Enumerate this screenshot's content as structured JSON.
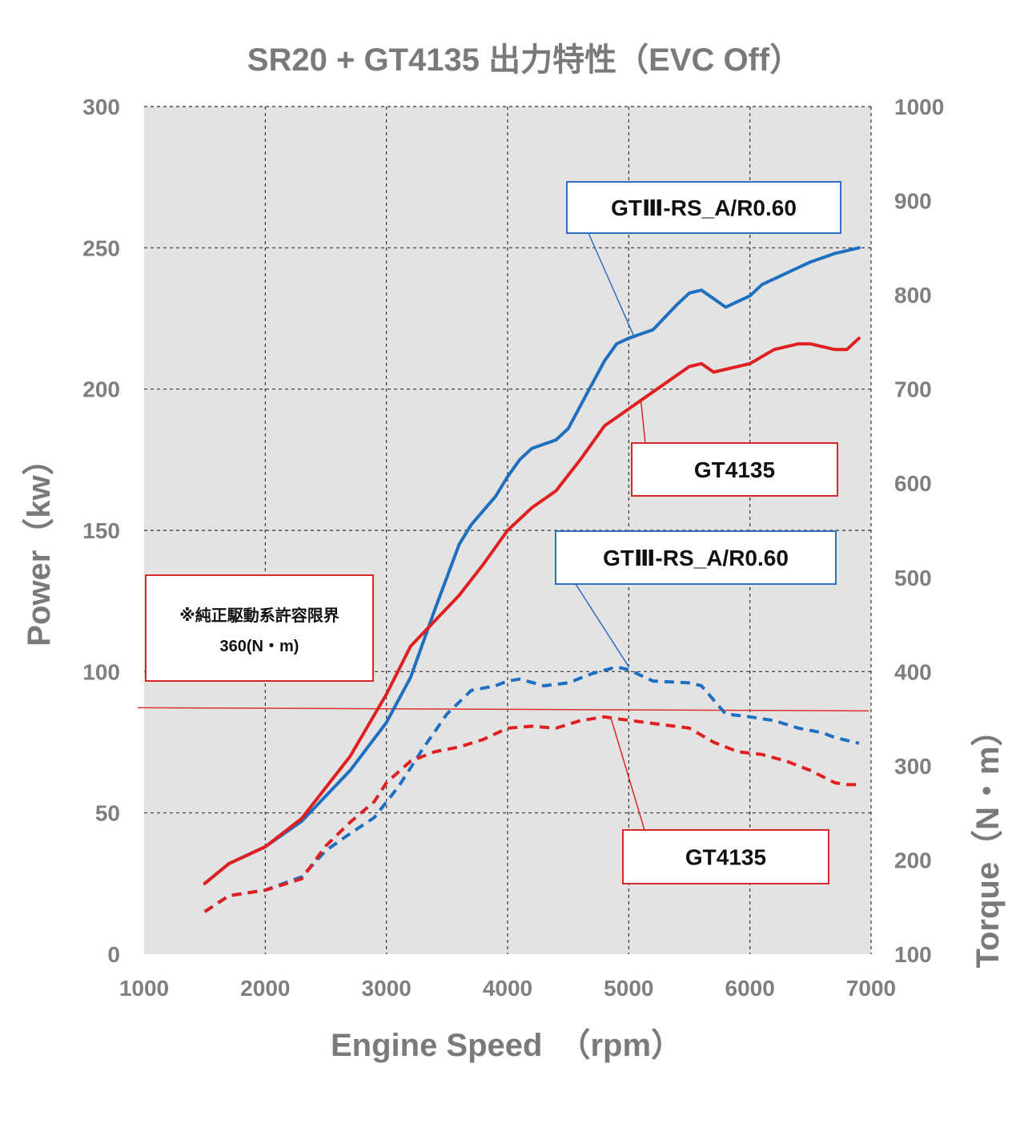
{
  "chart_data": {
    "type": "line",
    "title": "SR20 + GT4135  出力特性（EVC Off）",
    "xlabel": "Engine Speed　（rpm）",
    "ylabel_left": "Power（kw）",
    "ylabel_right": "Torque（N・m）",
    "xlim": [
      1000,
      7000
    ],
    "ylim_left": [
      0,
      300
    ],
    "ylim_right": [
      100,
      1000
    ],
    "x_ticks": [
      "1000",
      "2000",
      "3000",
      "4000",
      "5000",
      "6000",
      "7000"
    ],
    "y_left_ticks": [
      "0",
      "50",
      "100",
      "150",
      "200",
      "250",
      "300"
    ],
    "y_right_ticks": [
      "100",
      "200",
      "300",
      "400",
      "500",
      "600",
      "700",
      "800",
      "900",
      "1000"
    ],
    "grid": true,
    "series": [
      {
        "name": "GTⅢ-RS_A/R0.60",
        "quantity": "power",
        "axis": "left",
        "style": "solid",
        "color": "#1f6fc0",
        "points": [
          [
            1500,
            25
          ],
          [
            1700,
            32
          ],
          [
            2000,
            38
          ],
          [
            2300,
            47
          ],
          [
            2700,
            65
          ],
          [
            3000,
            82
          ],
          [
            3200,
            98
          ],
          [
            3400,
            122
          ],
          [
            3600,
            145
          ],
          [
            3700,
            152
          ],
          [
            3900,
            162
          ],
          [
            4000,
            169
          ],
          [
            4100,
            175
          ],
          [
            4200,
            179
          ],
          [
            4400,
            182
          ],
          [
            4500,
            186
          ],
          [
            4700,
            202
          ],
          [
            4800,
            210
          ],
          [
            4900,
            216
          ],
          [
            5000,
            218
          ],
          [
            5200,
            221
          ],
          [
            5400,
            230
          ],
          [
            5500,
            234
          ],
          [
            5600,
            235
          ],
          [
            5800,
            229
          ],
          [
            6000,
            233
          ],
          [
            6100,
            237
          ],
          [
            6300,
            241
          ],
          [
            6400,
            243
          ],
          [
            6500,
            245
          ],
          [
            6700,
            248
          ],
          [
            6900,
            250
          ]
        ]
      },
      {
        "name": "GT4135",
        "quantity": "power",
        "axis": "left",
        "style": "solid",
        "color": "#e02020",
        "points": [
          [
            1500,
            25
          ],
          [
            1700,
            32
          ],
          [
            2000,
            38
          ],
          [
            2300,
            48
          ],
          [
            2700,
            70
          ],
          [
            3000,
            92
          ],
          [
            3200,
            109
          ],
          [
            3400,
            118
          ],
          [
            3600,
            127
          ],
          [
            3800,
            138
          ],
          [
            4000,
            150
          ],
          [
            4200,
            158
          ],
          [
            4400,
            164
          ],
          [
            4600,
            175
          ],
          [
            4800,
            187
          ],
          [
            5000,
            193
          ],
          [
            5200,
            199
          ],
          [
            5400,
            205
          ],
          [
            5500,
            208
          ],
          [
            5600,
            209
          ],
          [
            5700,
            206
          ],
          [
            6000,
            209
          ],
          [
            6200,
            214
          ],
          [
            6400,
            216
          ],
          [
            6500,
            216
          ],
          [
            6700,
            214
          ],
          [
            6800,
            214
          ],
          [
            6900,
            218
          ]
        ]
      },
      {
        "name": "GTⅢ-RS_A/R0.60",
        "quantity": "torque",
        "axis": "right",
        "style": "dashed",
        "color": "#1f6fc0",
        "points": [
          [
            1500,
            145
          ],
          [
            1700,
            162
          ],
          [
            2000,
            168
          ],
          [
            2300,
            182
          ],
          [
            2500,
            210
          ],
          [
            2700,
            228
          ],
          [
            2900,
            245
          ],
          [
            3100,
            278
          ],
          [
            3300,
            318
          ],
          [
            3500,
            355
          ],
          [
            3700,
            380
          ],
          [
            3900,
            385
          ],
          [
            4000,
            390
          ],
          [
            4100,
            392
          ],
          [
            4300,
            385
          ],
          [
            4500,
            388
          ],
          [
            4700,
            398
          ],
          [
            4900,
            405
          ],
          [
            5000,
            402
          ],
          [
            5200,
            390
          ],
          [
            5500,
            388
          ],
          [
            5600,
            385
          ],
          [
            5800,
            355
          ],
          [
            6000,
            352
          ],
          [
            6200,
            348
          ],
          [
            6400,
            340
          ],
          [
            6600,
            335
          ],
          [
            6700,
            330
          ],
          [
            6900,
            324
          ]
        ]
      },
      {
        "name": "GT4135",
        "quantity": "torque",
        "axis": "right",
        "style": "dashed",
        "color": "#e02020",
        "points": [
          [
            1500,
            145
          ],
          [
            1700,
            162
          ],
          [
            2000,
            168
          ],
          [
            2300,
            180
          ],
          [
            2500,
            215
          ],
          [
            2700,
            240
          ],
          [
            2900,
            262
          ],
          [
            3000,
            282
          ],
          [
            3200,
            305
          ],
          [
            3400,
            315
          ],
          [
            3600,
            320
          ],
          [
            3800,
            328
          ],
          [
            4000,
            340
          ],
          [
            4200,
            342
          ],
          [
            4400,
            340
          ],
          [
            4600,
            348
          ],
          [
            4800,
            352
          ],
          [
            4900,
            350
          ],
          [
            5200,
            345
          ],
          [
            5500,
            340
          ],
          [
            5700,
            325
          ],
          [
            5900,
            315
          ],
          [
            6100,
            312
          ],
          [
            6300,
            305
          ],
          [
            6500,
            295
          ],
          [
            6700,
            282
          ],
          [
            6800,
            280
          ],
          [
            6900,
            280
          ]
        ]
      }
    ],
    "limit_line": {
      "axis": "right",
      "value": 360,
      "color": "#e03030"
    },
    "callouts": [
      {
        "text": "GTⅢ-RS_A/R0.60",
        "border_color": "#2e6fbf",
        "line_color": "#2e6fbf",
        "target_x": 5050,
        "target_y": 218,
        "target_axis": "left"
      },
      {
        "text": "GT4135",
        "border_color": "#d62828",
        "line_color": "#d62828",
        "target_x": 5100,
        "target_y": 196,
        "target_axis": "left"
      },
      {
        "text": "GTⅢ-RS_A/R0.60",
        "border_color": "#2e6fbf",
        "line_color": "#2e6fbf",
        "target_x": 5000,
        "target_y": 405,
        "target_axis": "right"
      },
      {
        "text": "GT4135",
        "border_color": "#d62828",
        "line_color": "#d62828",
        "target_x": 4850,
        "target_y": 352,
        "target_axis": "right"
      }
    ],
    "note": {
      "line1": "※純正駆動系許容限界",
      "line2": "360(N・m)",
      "border_color": "#d62828"
    }
  }
}
